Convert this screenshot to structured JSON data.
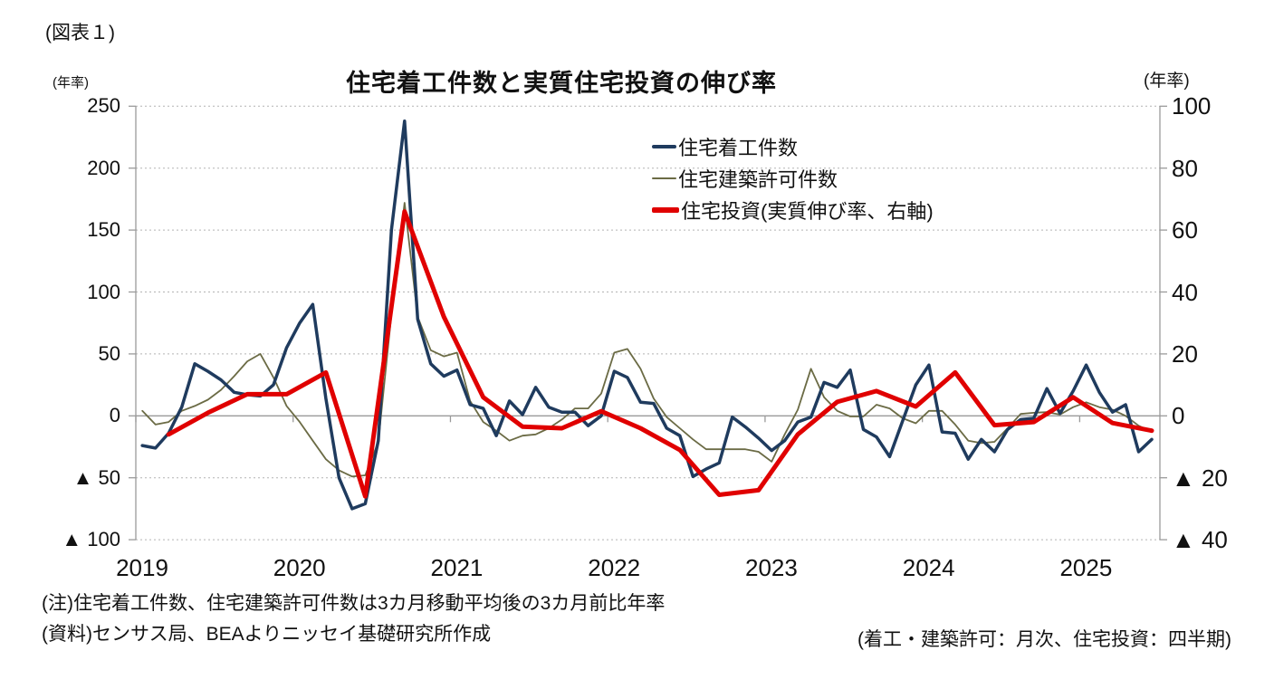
{
  "figure_label": "(図表１)",
  "notes": {
    "note1": "(注)住宅着工件数、住宅建築許可件数は3カ月移動平均後の3カ月前比年率",
    "note2": "(資料)センサス局、BEAよりニッセイ基礎研究所作成",
    "note3": "(着工・建築許可：月次、住宅投資：四半期)"
  },
  "chart_data": {
    "type": "line",
    "title": "住宅着工件数と実質住宅投資の伸び率",
    "x_tick_labels": [
      "2019",
      "2020",
      "2021",
      "2022",
      "2023",
      "2024",
      "2025"
    ],
    "x_range": "2019-01 to 2025-06",
    "grid": "horizontal dotted gridlines, solid zero line, legend inside top-right",
    "left_axis": {
      "unit": "(年率)",
      "min": -100,
      "max": 250,
      "tick_step": 50,
      "tick_values": [
        250,
        200,
        150,
        100,
        50,
        0,
        -50,
        -100
      ],
      "tick_labels": [
        "250",
        "200",
        "150",
        "100",
        "50",
        "0",
        "▲ 50",
        "▲ 100"
      ]
    },
    "right_axis": {
      "unit": "(年率)",
      "min": -40,
      "max": 100,
      "tick_step": 20,
      "tick_values": [
        100,
        80,
        60,
        40,
        20,
        0,
        -20,
        -40
      ],
      "tick_labels": [
        "100",
        "80",
        "60",
        "40",
        "20",
        "0",
        "▲ 20",
        "▲ 40"
      ]
    },
    "series": [
      {
        "key": "housing-starts",
        "name": "住宅着工件数",
        "axis": "left",
        "freq": "monthly",
        "start": "2019-01",
        "color": "#1F3B5E",
        "line_width": 3.5,
        "values": [
          -24,
          -26,
          -14,
          7,
          42,
          36,
          29,
          19,
          17,
          16,
          25,
          55,
          75,
          90,
          14,
          -50,
          -75,
          -71,
          -20,
          150,
          238,
          78,
          42,
          32,
          37,
          9,
          6,
          -16,
          12,
          1,
          23,
          7,
          3,
          3,
          -8,
          0,
          36,
          31,
          11,
          10,
          -10,
          -16,
          -49,
          -43,
          -38,
          -1,
          -9,
          -18,
          -28,
          -20,
          -5,
          -1,
          27,
          23,
          37,
          -11,
          -17,
          -33,
          -4,
          25,
          41,
          -13,
          -14,
          -35,
          -19,
          -29,
          -11,
          -3,
          -2,
          22,
          2,
          20,
          41,
          19,
          3,
          9,
          -29,
          -19
        ]
      },
      {
        "key": "building-permits",
        "name": "住宅建築許可件数",
        "axis": "left",
        "freq": "monthly",
        "start": "2019-01",
        "color": "#6B6B45",
        "line_width": 1.8,
        "values": [
          4,
          -7,
          -5,
          4,
          8,
          13,
          21,
          32,
          44,
          50,
          31,
          8,
          -5,
          -20,
          -35,
          -44,
          -49,
          -48,
          -21,
          82,
          172,
          80,
          53,
          48,
          51,
          12,
          -5,
          -12,
          -20,
          -16,
          -15,
          -10,
          -3,
          6,
          6,
          18,
          51,
          54,
          38,
          14,
          -1,
          -10,
          -19,
          -27,
          -27,
          -27,
          -27,
          -29,
          -37,
          -15,
          5,
          38,
          15,
          4,
          -0.5,
          -0.5,
          9,
          6,
          -2,
          -6,
          4,
          4,
          -7,
          -20,
          -22,
          -21,
          -10,
          1.5,
          2.5,
          3,
          1,
          7,
          11,
          7,
          5,
          0,
          -8,
          -13
        ]
      },
      {
        "key": "housing-investment",
        "name": "住宅投資(実質伸び率、右軸)",
        "axis": "right",
        "freq": "quarterly",
        "start": "2019-Q1",
        "color": "#E00000",
        "line_width": 5,
        "values": [
          -6,
          1,
          7,
          7,
          14,
          -26,
          66,
          32,
          6,
          -3.5,
          -4,
          1.5,
          -4,
          -11,
          -25.5,
          -24,
          -6,
          4.5,
          8,
          3,
          14,
          -3,
          -2,
          6,
          -2.3,
          -4.8
        ]
      }
    ]
  }
}
